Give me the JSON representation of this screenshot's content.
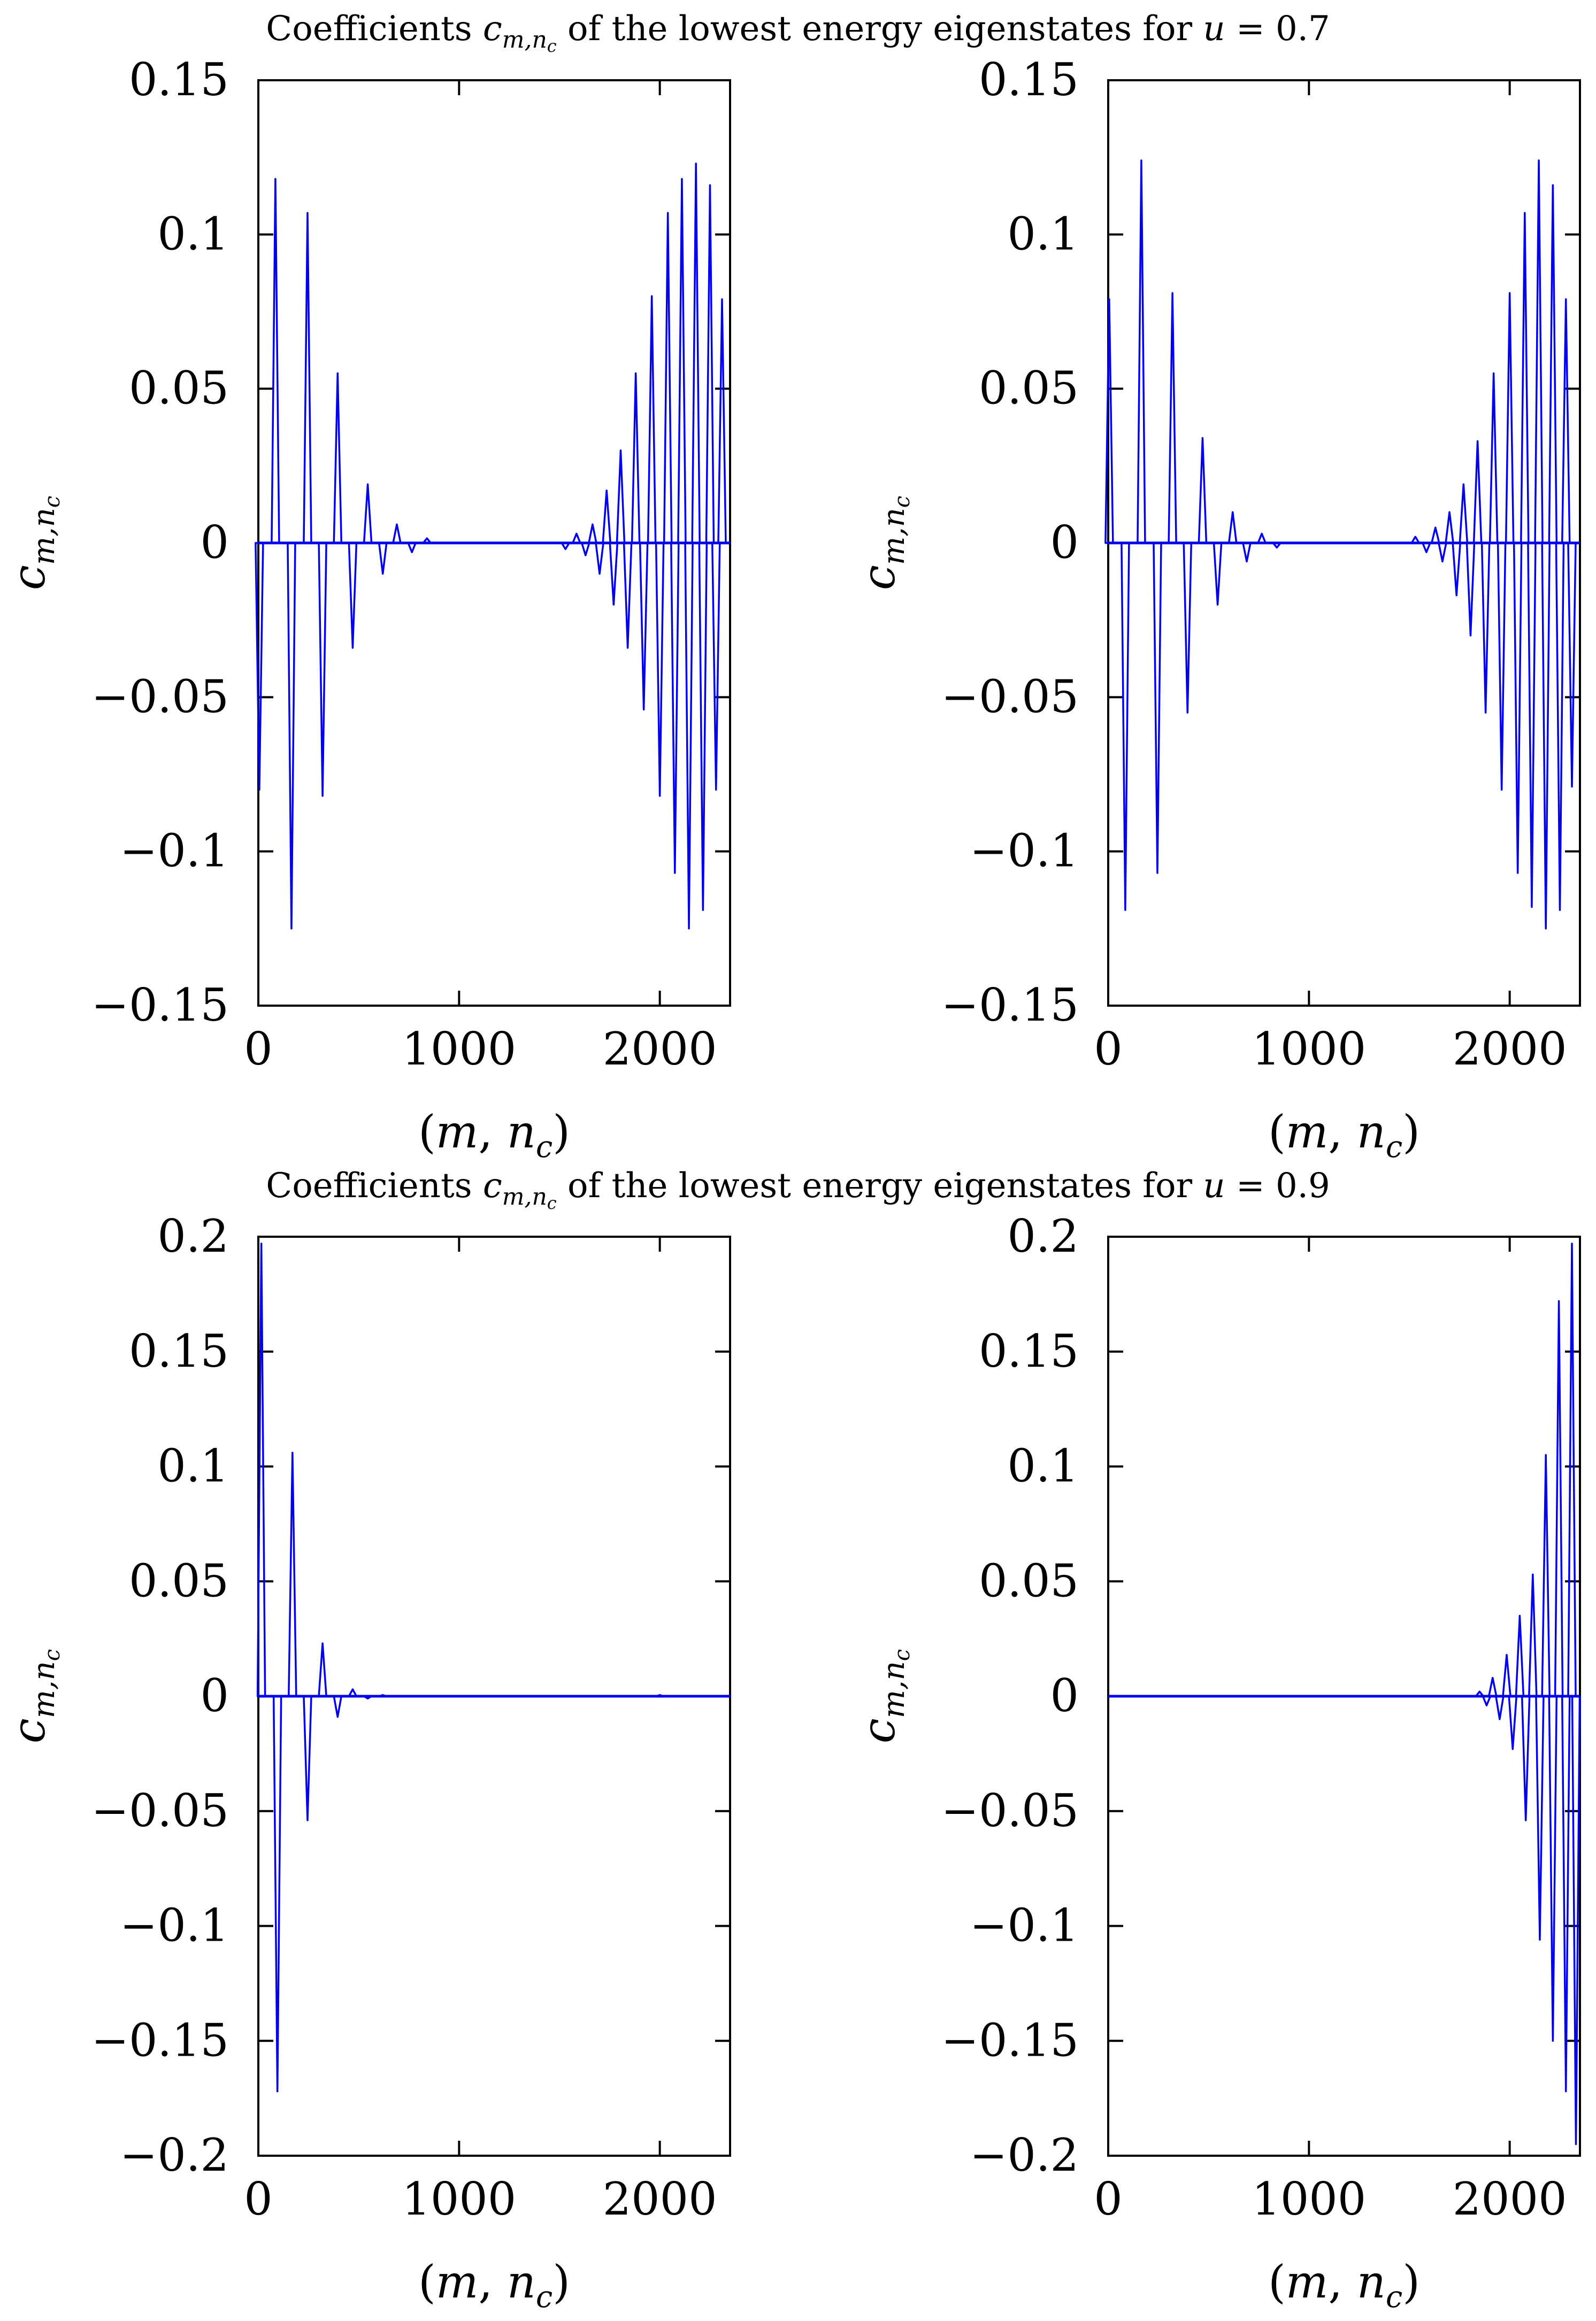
{
  "figure": {
    "titles": [
      {
        "text": "Coefficients",
        "symbol": "c",
        "subscript": "m,n",
        "subsub": "c",
        "rest": " of the lowest energy eigenstates for ",
        "var": "u",
        "value": " = 0.7"
      },
      {
        "text": "Coefficients",
        "symbol": "c",
        "subscript": "m,n",
        "subsub": "c",
        "rest": " of the lowest energy eigenstates for ",
        "var": "u",
        "value": " = 0.9"
      }
    ],
    "series_color": "#0000ee",
    "axis_color": "#000000"
  },
  "chart_data": [
    {
      "type": "line",
      "name": "u=0.7 left",
      "xlabel": "(m, n_c)",
      "ylabel": "c_{m,n_c}",
      "xlim": [
        0,
        2350
      ],
      "ylim": [
        -0.15,
        0.15
      ],
      "xticks": [
        0,
        1000,
        2000
      ],
      "xtick_labels": [
        "0",
        "1000",
        "2000"
      ],
      "yticks": [
        -0.15,
        -0.1,
        -0.05,
        0,
        0.05,
        0.1,
        0.15
      ],
      "ytick_labels": [
        "−0.15",
        "−0.1",
        "−0.05",
        "0",
        "0.05",
        "0.1",
        "0.15"
      ],
      "spikes": [
        {
          "x": 5,
          "y": -0.08
        },
        {
          "x": 85,
          "y": 0.118
        },
        {
          "x": 165,
          "y": -0.125
        },
        {
          "x": 245,
          "y": 0.107
        },
        {
          "x": 320,
          "y": -0.082
        },
        {
          "x": 395,
          "y": 0.055
        },
        {
          "x": 470,
          "y": -0.034
        },
        {
          "x": 545,
          "y": 0.019
        },
        {
          "x": 620,
          "y": -0.01
        },
        {
          "x": 690,
          "y": 0.006
        },
        {
          "x": 765,
          "y": -0.003
        },
        {
          "x": 840,
          "y": 0.0015
        },
        {
          "x": 1530,
          "y": -0.002
        },
        {
          "x": 1585,
          "y": 0.003
        },
        {
          "x": 1630,
          "y": -0.004
        },
        {
          "x": 1665,
          "y": 0.006
        },
        {
          "x": 1700,
          "y": -0.01
        },
        {
          "x": 1735,
          "y": 0.017
        },
        {
          "x": 1770,
          "y": -0.02
        },
        {
          "x": 1805,
          "y": 0.03
        },
        {
          "x": 1840,
          "y": -0.034
        },
        {
          "x": 1880,
          "y": 0.055
        },
        {
          "x": 1920,
          "y": -0.054
        },
        {
          "x": 1960,
          "y": 0.08
        },
        {
          "x": 2000,
          "y": -0.082
        },
        {
          "x": 2040,
          "y": 0.107
        },
        {
          "x": 2075,
          "y": -0.107
        },
        {
          "x": 2110,
          "y": 0.118
        },
        {
          "x": 2145,
          "y": -0.125
        },
        {
          "x": 2180,
          "y": 0.123
        },
        {
          "x": 2215,
          "y": -0.119
        },
        {
          "x": 2250,
          "y": 0.116
        },
        {
          "x": 2280,
          "y": -0.08
        },
        {
          "x": 2310,
          "y": 0.079
        }
      ]
    },
    {
      "type": "line",
      "name": "u=0.7 right",
      "xlabel": "(m, n_c)",
      "ylabel": "c_{m,n_c}",
      "xlim": [
        0,
        2350
      ],
      "ylim": [
        -0.15,
        0.15
      ],
      "xticks": [
        0,
        1000,
        2000
      ],
      "xtick_labels": [
        "0",
        "1000",
        "2000"
      ],
      "yticks": [
        -0.15,
        -0.1,
        -0.05,
        0,
        0.05,
        0.1,
        0.15
      ],
      "ytick_labels": [
        "−0.15",
        "−0.1",
        "−0.05",
        "0",
        "0.05",
        "0.1",
        "0.15"
      ],
      "spikes": [
        {
          "x": 5,
          "y": 0.079
        },
        {
          "x": 85,
          "y": -0.119
        },
        {
          "x": 165,
          "y": 0.124
        },
        {
          "x": 245,
          "y": -0.107
        },
        {
          "x": 320,
          "y": 0.081
        },
        {
          "x": 395,
          "y": -0.055
        },
        {
          "x": 470,
          "y": 0.034
        },
        {
          "x": 545,
          "y": -0.02
        },
        {
          "x": 620,
          "y": 0.01
        },
        {
          "x": 690,
          "y": -0.006
        },
        {
          "x": 765,
          "y": 0.003
        },
        {
          "x": 840,
          "y": -0.0015
        },
        {
          "x": 1530,
          "y": 0.002
        },
        {
          "x": 1585,
          "y": -0.003
        },
        {
          "x": 1630,
          "y": 0.005
        },
        {
          "x": 1665,
          "y": -0.006
        },
        {
          "x": 1700,
          "y": 0.01
        },
        {
          "x": 1735,
          "y": -0.017
        },
        {
          "x": 1770,
          "y": 0.019
        },
        {
          "x": 1805,
          "y": -0.03
        },
        {
          "x": 1840,
          "y": 0.033
        },
        {
          "x": 1880,
          "y": -0.055
        },
        {
          "x": 1920,
          "y": 0.055
        },
        {
          "x": 1960,
          "y": -0.08
        },
        {
          "x": 2000,
          "y": 0.081
        },
        {
          "x": 2040,
          "y": -0.107
        },
        {
          "x": 2075,
          "y": 0.107
        },
        {
          "x": 2110,
          "y": -0.118
        },
        {
          "x": 2145,
          "y": 0.124
        },
        {
          "x": 2180,
          "y": -0.125
        },
        {
          "x": 2215,
          "y": 0.116
        },
        {
          "x": 2250,
          "y": -0.119
        },
        {
          "x": 2280,
          "y": 0.079
        },
        {
          "x": 2310,
          "y": -0.079
        }
      ]
    },
    {
      "type": "line",
      "name": "u=0.9 left",
      "xlabel": "(m, n_c)",
      "ylabel": "c_{m,n_c}",
      "xlim": [
        0,
        2350
      ],
      "ylim": [
        -0.2,
        0.2
      ],
      "xticks": [
        0,
        1000,
        2000
      ],
      "xtick_labels": [
        "0",
        "1000",
        "2000"
      ],
      "yticks": [
        -0.2,
        -0.15,
        -0.1,
        -0.05,
        0,
        0.05,
        0.1,
        0.15,
        0.2
      ],
      "ytick_labels": [
        "−0.2",
        "−0.15",
        "−0.1",
        "−0.05",
        "0",
        "0.05",
        "0.1",
        "0.15",
        "0.2"
      ],
      "spikes": [
        {
          "x": 15,
          "y": 0.197
        },
        {
          "x": 95,
          "y": -0.172
        },
        {
          "x": 170,
          "y": 0.106
        },
        {
          "x": 245,
          "y": -0.054
        },
        {
          "x": 320,
          "y": 0.023
        },
        {
          "x": 395,
          "y": -0.009
        },
        {
          "x": 470,
          "y": 0.003
        },
        {
          "x": 545,
          "y": -0.001
        },
        {
          "x": 620,
          "y": 0.0005
        },
        {
          "x": 2000,
          "y": 0.0005
        }
      ]
    },
    {
      "type": "line",
      "name": "u=0.9 right",
      "xlabel": "(m, n_c)",
      "ylabel": "c_{m,n_c}",
      "xlim": [
        0,
        2350
      ],
      "ylim": [
        -0.2,
        0.2
      ],
      "xticks": [
        0,
        1000,
        2000
      ],
      "xtick_labels": [
        "0",
        "1000",
        "2000"
      ],
      "yticks": [
        -0.2,
        -0.15,
        -0.1,
        -0.05,
        0,
        0.05,
        0.1,
        0.15,
        0.2
      ],
      "ytick_labels": [
        "−0.2",
        "−0.15",
        "−0.1",
        "−0.05",
        "0",
        "0.05",
        "0.1",
        "0.15",
        "0.2"
      ],
      "spikes": [
        {
          "x": 1850,
          "y": 0.002
        },
        {
          "x": 1885,
          "y": -0.004
        },
        {
          "x": 1915,
          "y": 0.008
        },
        {
          "x": 1950,
          "y": -0.01
        },
        {
          "x": 1985,
          "y": 0.018
        },
        {
          "x": 2015,
          "y": -0.023
        },
        {
          "x": 2050,
          "y": 0.035
        },
        {
          "x": 2080,
          "y": -0.054
        },
        {
          "x": 2115,
          "y": 0.053
        },
        {
          "x": 2150,
          "y": -0.106
        },
        {
          "x": 2180,
          "y": 0.105
        },
        {
          "x": 2215,
          "y": -0.15
        },
        {
          "x": 2245,
          "y": 0.172
        },
        {
          "x": 2280,
          "y": -0.172
        },
        {
          "x": 2310,
          "y": 0.197
        },
        {
          "x": 2330,
          "y": -0.195
        }
      ]
    }
  ]
}
